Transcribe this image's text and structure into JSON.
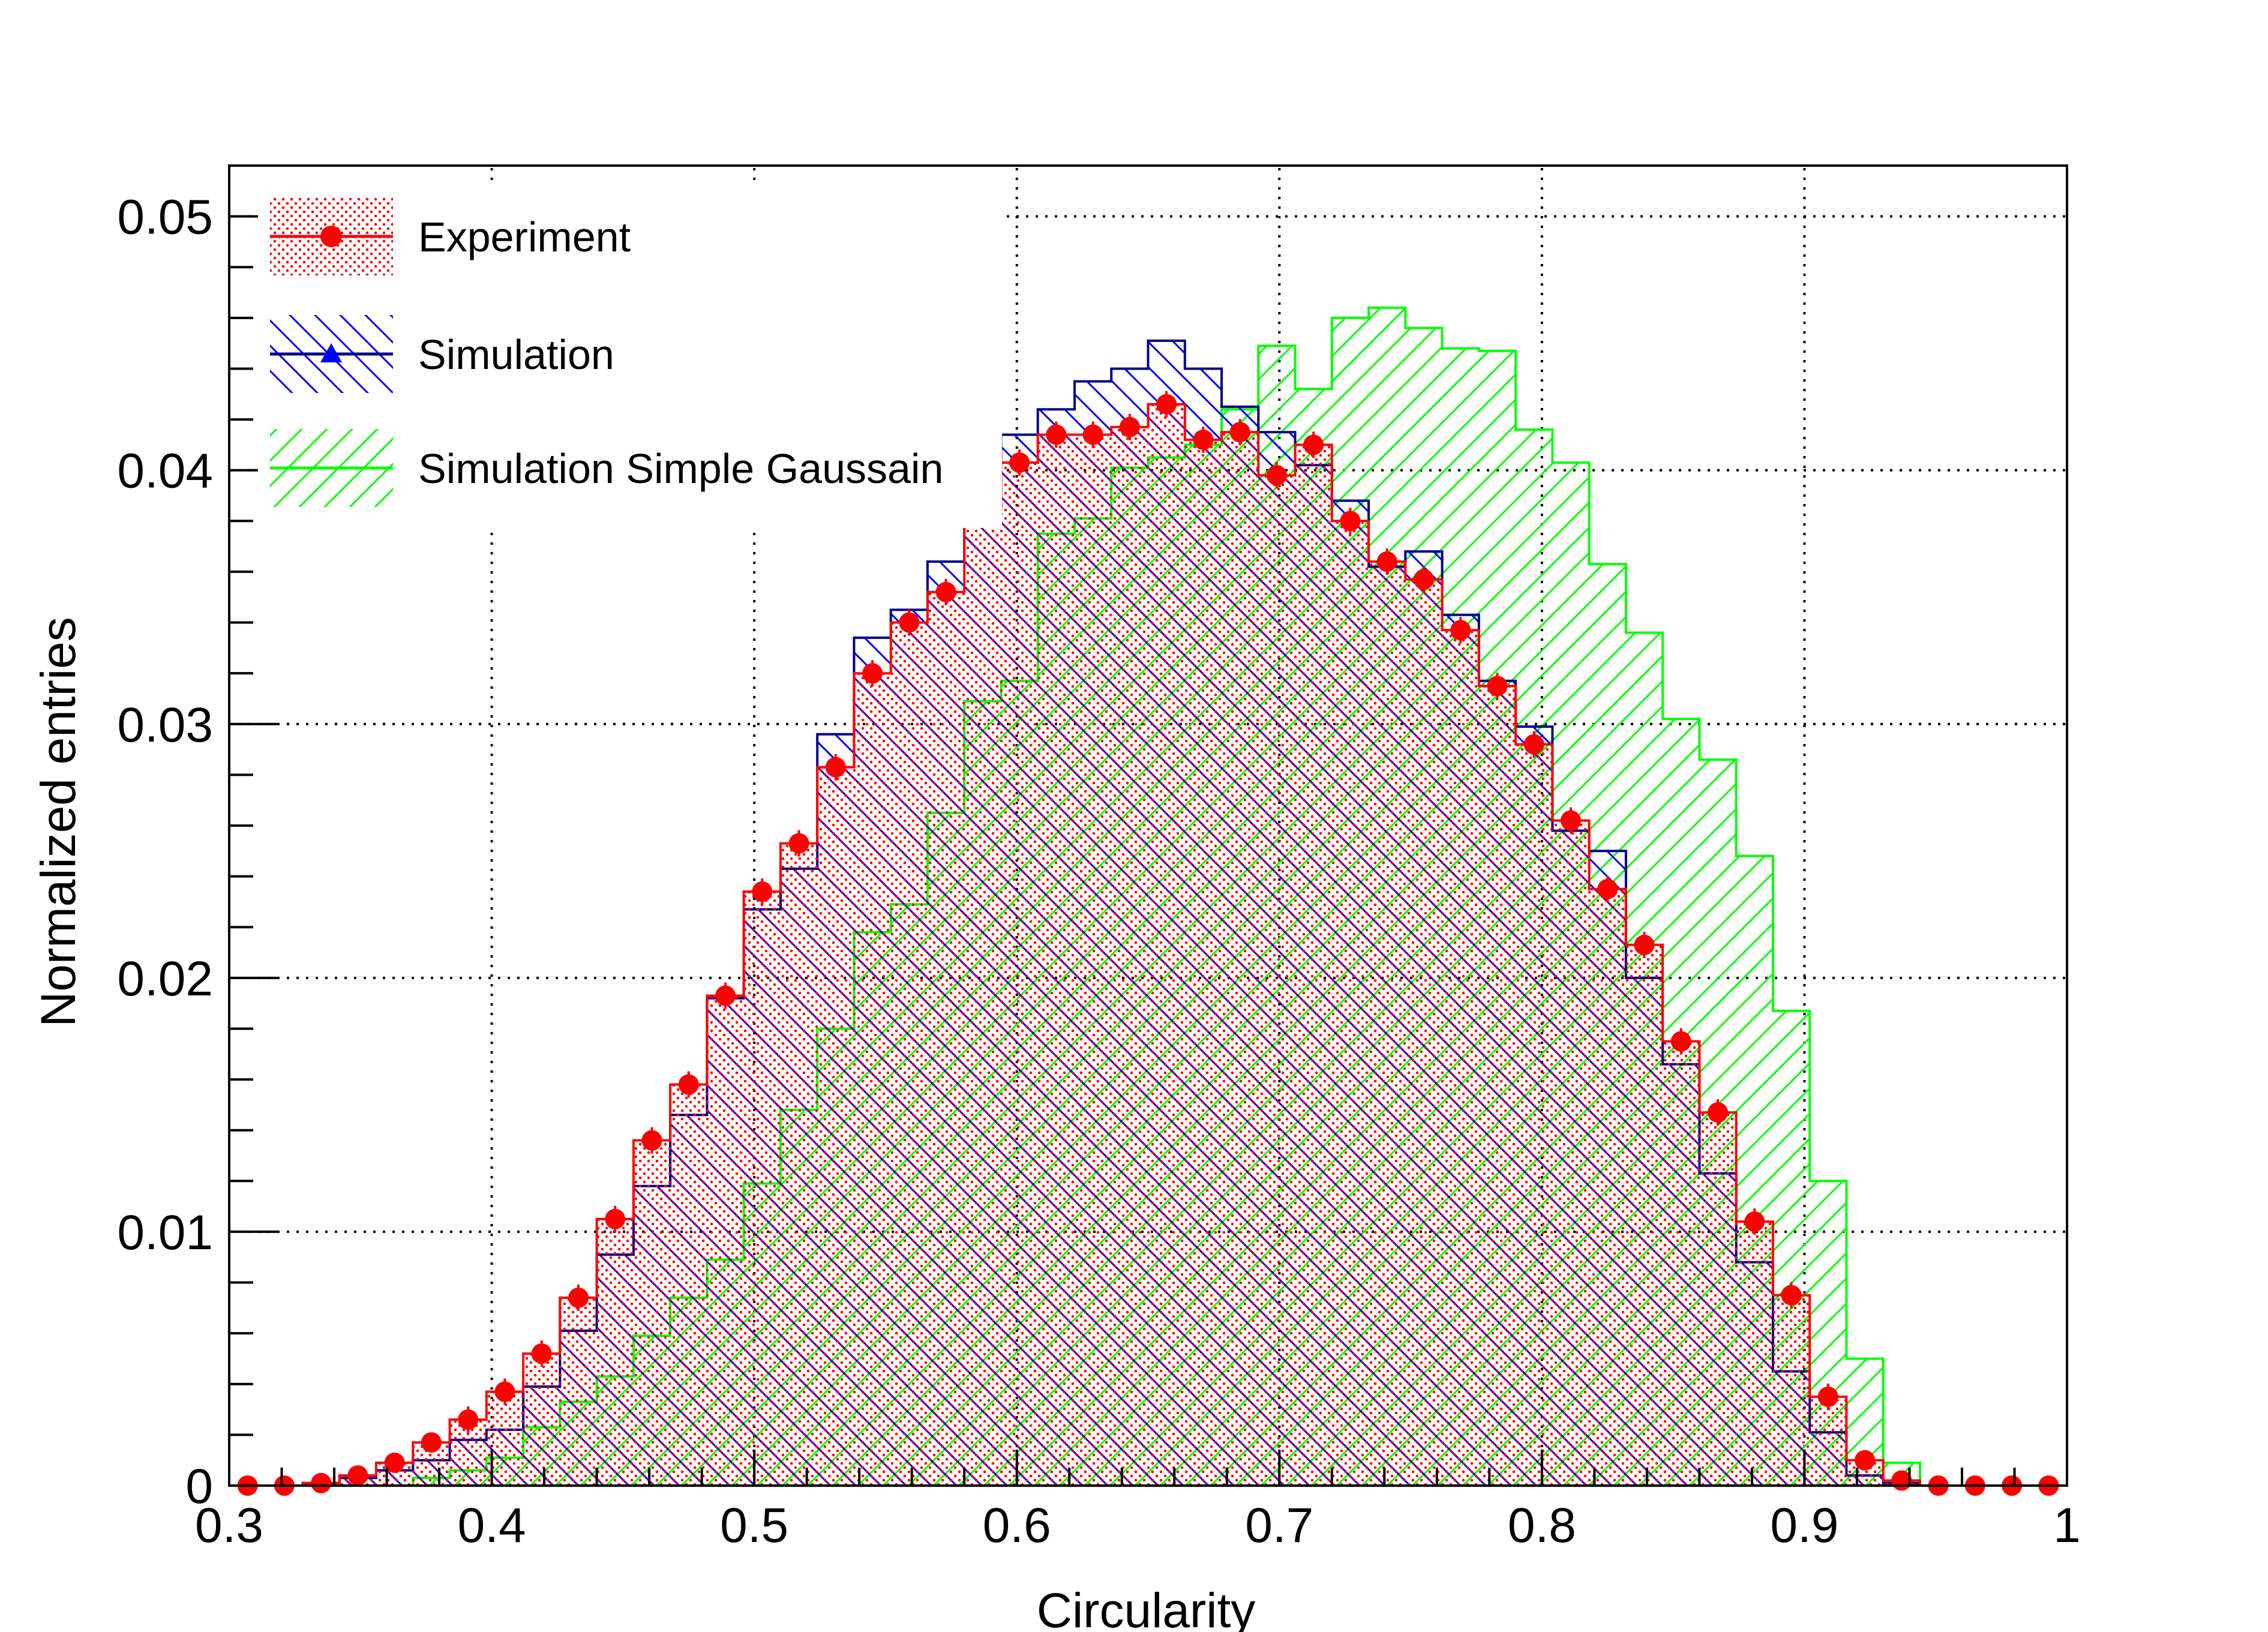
{
  "chart_data": {
    "type": "histogram",
    "xlabel": "Circularity",
    "ylabel": "Normalized entries",
    "xlim": [
      0.3,
      1.0
    ],
    "ylim": [
      0,
      0.052
    ],
    "grid": "dotted",
    "legend_placement": "top-left",
    "x_ticks": [
      {
        "value": 0.3,
        "label": "0.3"
      },
      {
        "value": 0.4,
        "label": "0.4"
      },
      {
        "value": 0.5,
        "label": "0.5"
      },
      {
        "value": 0.6,
        "label": "0.6"
      },
      {
        "value": 0.7,
        "label": "0.7"
      },
      {
        "value": 0.8,
        "label": "0.8"
      },
      {
        "value": 0.9,
        "label": "0.9"
      },
      {
        "value": 1.0,
        "label": "1"
      }
    ],
    "y_ticks": [
      {
        "value": 0,
        "label": "0"
      },
      {
        "value": 0.01,
        "label": "0.01"
      },
      {
        "value": 0.02,
        "label": "0.02"
      },
      {
        "value": 0.03,
        "label": "0.03"
      },
      {
        "value": 0.04,
        "label": "0.04"
      },
      {
        "value": 0.05,
        "label": "0.05"
      }
    ],
    "bin_width": 0.014,
    "bin_start": 0.3,
    "series": [
      {
        "name": "Experiment",
        "color": "#ff0000",
        "fill_style": "dots",
        "marker": "circle",
        "values": [
          0.0,
          0.0,
          0.0001,
          0.0004,
          0.0009,
          0.0017,
          0.0026,
          0.0037,
          0.0052,
          0.0074,
          0.0105,
          0.0136,
          0.0158,
          0.0193,
          0.0234,
          0.0253,
          0.0283,
          0.032,
          0.034,
          0.0352,
          0.0385,
          0.0403,
          0.0414,
          0.0414,
          0.0417,
          0.0426,
          0.0412,
          0.0415,
          0.0398,
          0.041,
          0.038,
          0.0364,
          0.0357,
          0.0337,
          0.0315,
          0.0292,
          0.0262,
          0.0235,
          0.0213,
          0.0175,
          0.0147,
          0.0104,
          0.0075,
          0.0035,
          0.001,
          0.0002,
          0.0,
          0.0,
          0.0,
          0.0
        ]
      },
      {
        "name": "Simulation",
        "color": "#00008b",
        "fill_style": "hatch-back",
        "marker": "triangle",
        "values": [
          0.0,
          0.0,
          0.0001,
          0.0003,
          0.0006,
          0.001,
          0.0018,
          0.0022,
          0.0039,
          0.0061,
          0.0091,
          0.0118,
          0.0146,
          0.0192,
          0.0227,
          0.0243,
          0.0296,
          0.0334,
          0.0345,
          0.0364,
          0.0392,
          0.0414,
          0.0424,
          0.0435,
          0.044,
          0.0451,
          0.044,
          0.0425,
          0.0415,
          0.0402,
          0.0388,
          0.0362,
          0.0368,
          0.0343,
          0.0317,
          0.0299,
          0.0258,
          0.025,
          0.02,
          0.0166,
          0.0123,
          0.0088,
          0.0045,
          0.0021,
          0.0004,
          0.0001,
          0.0,
          0.0,
          0.0,
          0.0
        ]
      },
      {
        "name": "Simulation Simple Gaussain",
        "color": "#00ff00",
        "fill_style": "hatch-fwd",
        "marker": "none",
        "values": [
          0.0,
          0.0,
          0.0,
          0.0,
          0.0,
          0.0003,
          0.0006,
          0.0011,
          0.0023,
          0.0033,
          0.0043,
          0.0059,
          0.0074,
          0.0089,
          0.0119,
          0.0148,
          0.018,
          0.0218,
          0.0229,
          0.0265,
          0.0309,
          0.0317,
          0.0375,
          0.0381,
          0.0401,
          0.0405,
          0.041,
          0.0424,
          0.0449,
          0.0432,
          0.046,
          0.0464,
          0.0456,
          0.0448,
          0.0447,
          0.0416,
          0.0403,
          0.0363,
          0.0336,
          0.0302,
          0.0286,
          0.0248,
          0.0187,
          0.012,
          0.005,
          0.0009,
          0.0,
          0.0,
          0.0,
          0.0
        ]
      }
    ]
  }
}
